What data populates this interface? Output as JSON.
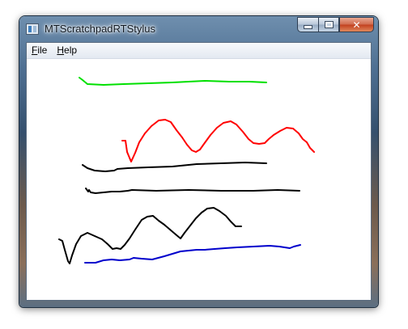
{
  "window": {
    "title": "MTScratchpadRTStylus",
    "icon": "app-window-icon"
  },
  "caption_buttons": {
    "minimize_icon": "minimize-icon",
    "maximize_icon": "maximize-icon",
    "close_label": "✕"
  },
  "menu": {
    "items": [
      {
        "label": "File",
        "mnemonic": "F",
        "rest": "ile"
      },
      {
        "label": "Help",
        "mnemonic": "H",
        "rest": "elp"
      }
    ]
  },
  "strokes": {
    "colors": {
      "green": "#00e000",
      "red": "#ff0000",
      "black": "#000000",
      "blue": "#0000cc"
    }
  }
}
